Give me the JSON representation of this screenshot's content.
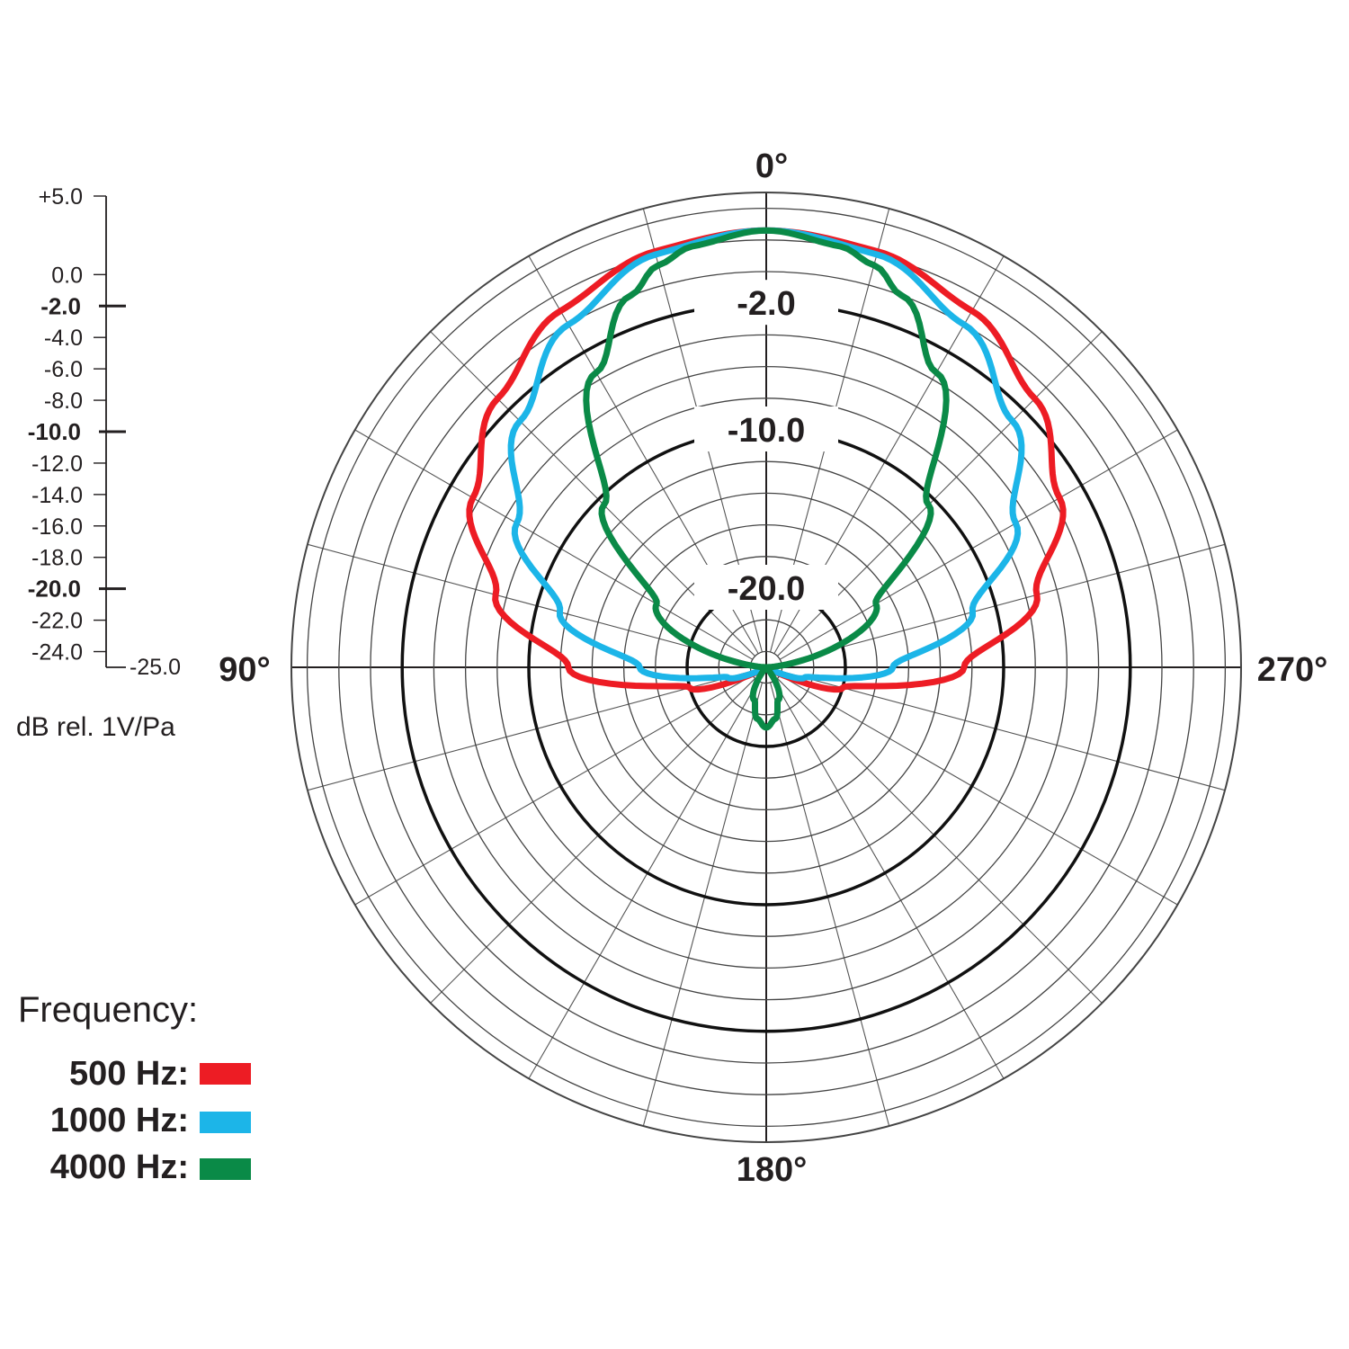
{
  "chart_data": {
    "type": "polar",
    "angle_unit": "degrees",
    "angle_labels": [
      "0°",
      "90°",
      "180°",
      "270°"
    ],
    "radial_range": [
      -25.0,
      5.0
    ],
    "radial_ticks": [
      "+5.0",
      "0.0",
      "-2.0",
      "-4.0",
      "-6.0",
      "-8.0",
      "-10.0",
      "-12.0",
      "-14.0",
      "-16.0",
      "-18.0",
      "-20.0",
      "-22.0",
      "-24.0",
      "-25.0"
    ],
    "major_ticks": [
      "-2.0",
      "-10.0",
      "-20.0"
    ],
    "major_ring_values": [
      -2.0,
      -10.0,
      -20.0
    ],
    "ring_labels": [
      "-2.0",
      "-10.0",
      "-20.0"
    ],
    "unit_label": "dB rel. 1V/Pa",
    "legend_title": "Frequency:",
    "series": [
      {
        "name": "500 Hz:",
        "color": "#ed1c24",
        "angles": [
          0,
          15,
          30,
          45,
          60,
          75,
          90,
          105,
          120,
          135,
          150,
          165,
          180
        ],
        "values": [
          2.6,
          2.2,
          1.0,
          -1.0,
          -3.6,
          -7.3,
          -12.5,
          -20.0,
          -25.0,
          -25.0,
          -25.0,
          -25.0,
          -25.0
        ]
      },
      {
        "name": "1000 Hz:",
        "color": "#1cb5e8",
        "angles": [
          0,
          15,
          30,
          45,
          60,
          75,
          90,
          105,
          120,
          135,
          150,
          165,
          180
        ],
        "values": [
          2.6,
          2.0,
          0.0,
          -3.0,
          -6.8,
          -11.5,
          -17.0,
          -22.5,
          -25.0,
          -25.0,
          -25.0,
          -25.0,
          -25.0
        ]
      },
      {
        "name": "4000 Hz:",
        "color": "#0a8a47",
        "angles": [
          0,
          10,
          15,
          20,
          30,
          45,
          60,
          90,
          135,
          160,
          170,
          180
        ],
        "values": [
          2.6,
          2.0,
          1.3,
          0.0,
          -3.5,
          -10.5,
          -17.0,
          -25.0,
          -25.0,
          -22.8,
          -21.7,
          -21.2
        ]
      }
    ]
  }
}
